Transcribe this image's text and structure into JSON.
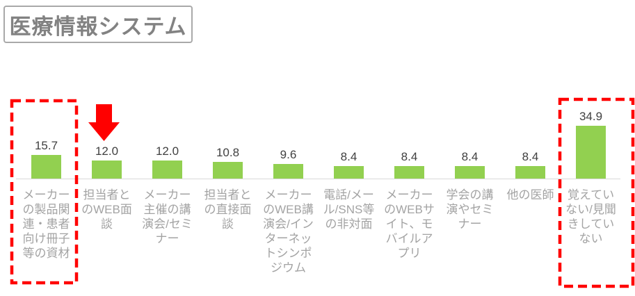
{
  "title": "医療情報システム",
  "chart_data": {
    "type": "bar",
    "title": "医療情報システム",
    "categories": [
      "メーカーの製品関連・患者向け冊子等の資材",
      "担当者とのWEB面談",
      "メーカー主催の講演会/セミナー",
      "担当者との直接面談",
      "メーカーのWEB講演会/インターネットシンポジウム",
      "電話/メール/SNS等の非対面",
      "メーカーのWEBサイト、モバイルアプリ",
      "学会の講演やセミナー",
      "他の医師",
      "覚えていない/見聞きしていない"
    ],
    "values": [
      15.7,
      12.0,
      12.0,
      10.8,
      9.6,
      8.4,
      8.4,
      8.4,
      8.4,
      34.9
    ],
    "value_labels": [
      "15.7",
      "12.0",
      "12.0",
      "10.8",
      "9.6",
      "8.4",
      "8.4",
      "8.4",
      "8.4",
      "34.9"
    ],
    "xlabel": "",
    "ylabel": "",
    "ylim": [
      0,
      40
    ],
    "grid": false,
    "legend": false,
    "bar_color": "#92d050",
    "axis_line_color": "#d9d9d9",
    "value_label_color": "#404040",
    "category_label_color": "#a3a3a3",
    "highlight_color": "#ff0000",
    "annotations": {
      "arrow_points_to": "担当者とのWEB面談",
      "dashed_boxes_around": [
        "メーカーの製品関連・患者向け冊子等の資材",
        "覚えていない/見聞きしていない"
      ]
    }
  }
}
